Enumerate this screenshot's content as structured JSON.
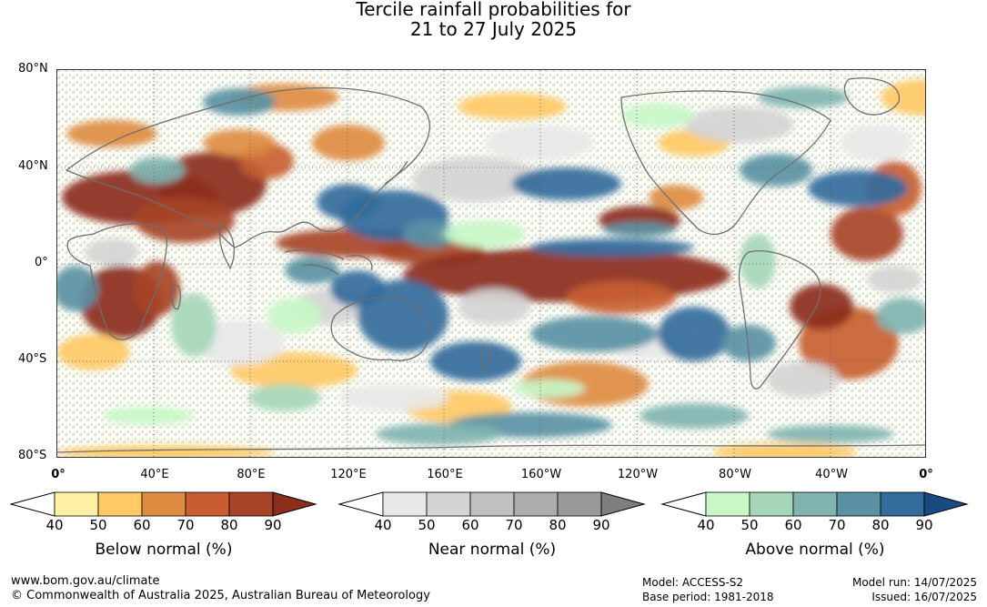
{
  "title": {
    "line1": "Tercile rainfall probabilities for",
    "line2": "21 to 27 July 2025"
  },
  "map": {
    "lat_labels": [
      "80°N",
      "40°N",
      "0°",
      "40°S",
      "80°S"
    ],
    "lon_labels": [
      "0°",
      "40°E",
      "80°E",
      "120°E",
      "160°E",
      "160°W",
      "120°W",
      "80°W",
      "40°W",
      "0°"
    ],
    "colors": {
      "below": [
        "#fff0a6",
        "#ffc966",
        "#de8c42",
        "#c85e30",
        "#a84428",
        "#8c2e1c"
      ],
      "near": [
        "#e8e8e8",
        "#d4d4d4",
        "#c0c0c0",
        "#acacac",
        "#999999",
        "#7e7e7e"
      ],
      "above": [
        "#c8f7c8",
        "#a6d6b8",
        "#80b4b0",
        "#5a92a4",
        "#336b9c",
        "#1a4a82"
      ]
    }
  },
  "legends": [
    {
      "name": "below",
      "title": "Below normal (%)",
      "ticks": [
        "40",
        "50",
        "60",
        "70",
        "80",
        "90"
      ]
    },
    {
      "name": "near",
      "title": "Near normal (%)",
      "ticks": [
        "40",
        "50",
        "60",
        "70",
        "80",
        "90"
      ]
    },
    {
      "name": "above",
      "title": "Above normal (%)",
      "ticks": [
        "40",
        "50",
        "60",
        "70",
        "80",
        "90"
      ]
    }
  ],
  "footer": {
    "website": "www.bom.gov.au/climate",
    "copyright": "© Commonwealth of Australia 2025, Australian Bureau of Meteorology",
    "model": "Model: ACCESS-S2",
    "base_period": "Base period: 1981-2018",
    "model_run": "Model run: 14/07/2025",
    "issued": "Issued: 16/07/2025"
  }
}
